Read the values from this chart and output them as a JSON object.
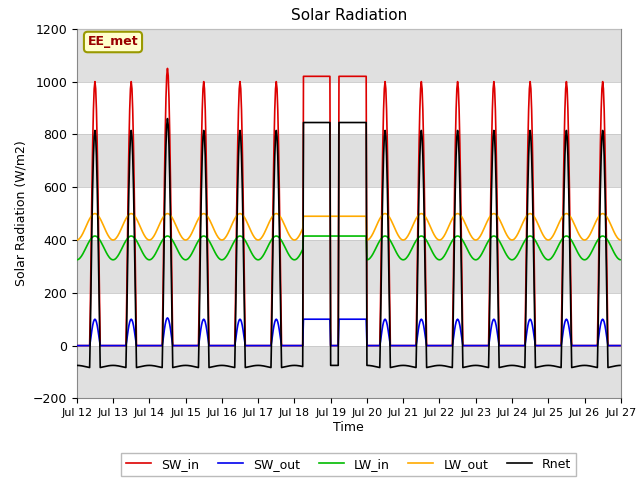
{
  "title": "Solar Radiation",
  "ylabel": "Solar Radiation (W/m2)",
  "xlabel": "Time",
  "ylim": [
    -200,
    1200
  ],
  "xlim": [
    0,
    15
  ],
  "yticks": [
    -200,
    0,
    200,
    400,
    600,
    800,
    1000,
    1200
  ],
  "xtick_labels": [
    "Jul 12",
    "Jul 13",
    "Jul 14",
    "Jul 15",
    "Jul 16",
    "Jul 17",
    "Jul 18",
    "Jul 19",
    "Jul 20",
    "Jul 21",
    "Jul 22",
    "Jul 23",
    "Jul 24",
    "Jul 25",
    "Jul 26",
    "Jul 27"
  ],
  "label_text": "EE_met",
  "colors": {
    "SW_in": "#dd0000",
    "SW_out": "#0000ee",
    "LW_in": "#00bb00",
    "LW_out": "#ffaa00",
    "Rnet": "#000000"
  },
  "lw": 1.2,
  "background_color": "#ffffff",
  "band_color": "#e0e0e0",
  "legend_ncol": 5,
  "figsize": [
    6.4,
    4.8
  ],
  "dpi": 100
}
